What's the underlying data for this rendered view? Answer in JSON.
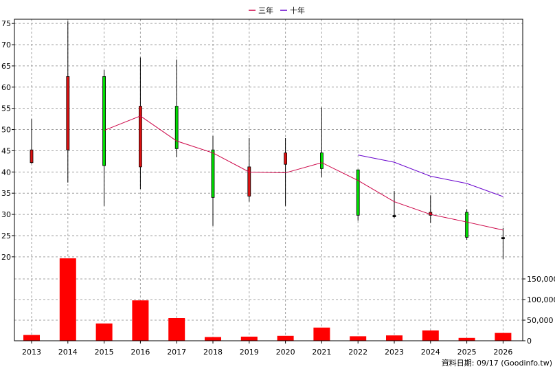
{
  "chart_data": {
    "type": "candlestick+line+bar",
    "legend": {
      "placement": "top-center",
      "items": [
        {
          "label": "三年",
          "color": "#cc0044"
        },
        {
          "label": "十年",
          "color": "#6600cc"
        }
      ]
    },
    "categories": [
      "2013",
      "2014",
      "2015",
      "2016",
      "2017",
      "2018",
      "2019",
      "2020",
      "2021",
      "2022",
      "2023",
      "2024",
      "2025",
      "2026"
    ],
    "price_axis": {
      "ylim": [
        19,
        76
      ],
      "ticks": [
        20,
        25,
        30,
        35,
        40,
        45,
        50,
        55,
        60,
        65,
        70,
        75
      ],
      "tick_labels": [
        "20",
        "25",
        "30",
        "35",
        "40",
        "45",
        "50",
        "55",
        "60",
        "65",
        "70",
        "75"
      ]
    },
    "volume_axis": {
      "ylim": [
        0,
        200000
      ],
      "ticks": [
        0,
        50000,
        100000,
        150000
      ],
      "tick_labels": [
        "0",
        "50,000",
        "100,000",
        "150,000"
      ]
    },
    "candles": [
      {
        "year": "2013",
        "open": 45.2,
        "close": 42.2,
        "high": 52.5,
        "low": 42.0
      },
      {
        "year": "2014",
        "open": 62.5,
        "close": 45.2,
        "high": 75.5,
        "low": 37.5
      },
      {
        "year": "2015",
        "open": 41.5,
        "close": 62.5,
        "high": 64.0,
        "low": 32.0
      },
      {
        "year": "2016",
        "open": 55.5,
        "close": 41.2,
        "high": 67.0,
        "low": 36.0
      },
      {
        "year": "2017",
        "open": 45.5,
        "close": 55.5,
        "high": 66.5,
        "low": 43.5
      },
      {
        "year": "2018",
        "open": 34.0,
        "close": 45.2,
        "high": 48.5,
        "low": 27.3
      },
      {
        "year": "2019",
        "open": 41.2,
        "close": 34.3,
        "high": 48.0,
        "low": 33.0
      },
      {
        "year": "2020",
        "open": 44.5,
        "close": 41.8,
        "high": 48.0,
        "low": 32.0
      },
      {
        "year": "2021",
        "open": 40.8,
        "close": 44.5,
        "high": 55.2,
        "low": 38.8
      },
      {
        "year": "2022",
        "open": 29.8,
        "close": 40.5,
        "high": 40.5,
        "low": 28.5
      },
      {
        "year": "2023",
        "open": 29.6,
        "close": 29.6,
        "high": 35.5,
        "low": 29.2
      },
      {
        "year": "2024",
        "open": 30.5,
        "close": 29.8,
        "high": 34.5,
        "low": 28.0
      },
      {
        "year": "2025",
        "open": 24.6,
        "close": 30.5,
        "high": 31.2,
        "low": 24.0
      },
      {
        "year": "2026",
        "open": 24.4,
        "close": 24.4,
        "high": 26.8,
        "low": 19.5
      }
    ],
    "series": [
      {
        "name": "三年",
        "color": "#cc0044",
        "x": [
          "2015",
          "2016",
          "2017",
          "2018",
          "2019",
          "2020",
          "2021",
          "2022",
          "2023",
          "2024",
          "2025",
          "2026"
        ],
        "values": [
          49.8,
          53.2,
          47.3,
          44.5,
          40.0,
          39.8,
          42.2,
          38.0,
          33.0,
          30.0,
          28.2,
          26.3
        ]
      },
      {
        "name": "十年",
        "color": "#6600cc",
        "x": [
          "2022",
          "2023",
          "2024",
          "2025",
          "2026"
        ],
        "values": [
          44.0,
          42.3,
          39.0,
          37.3,
          34.2
        ]
      }
    ],
    "volume": [
      14000,
      200000,
      42000,
      98000,
      55000,
      9000,
      10000,
      12000,
      32000,
      11000,
      13000,
      25000,
      7000,
      19000
    ],
    "footer_note": "資料日期: 09/17  (Goodinfo.tw)"
  }
}
